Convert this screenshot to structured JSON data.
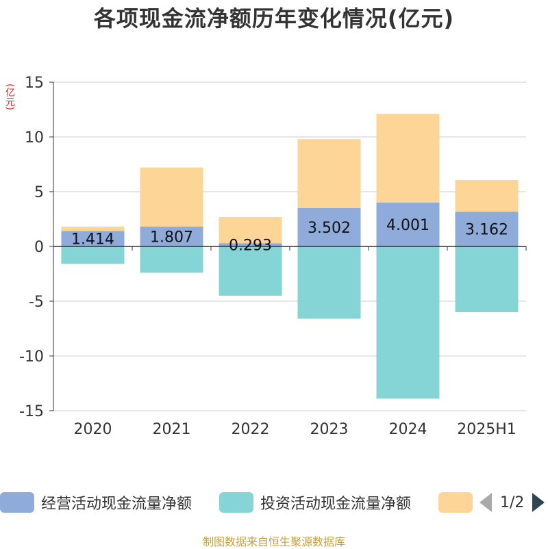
{
  "title": "各项现金流净额历年变化情况(亿元)",
  "unit_label": "(亿元)",
  "source": "制图数据来自恒生聚源数据库",
  "legend": {
    "items": [
      {
        "label": "经营活动现金流量净额",
        "color": "#8eabd9"
      },
      {
        "label": "投资活动现金流量净额",
        "color": "#85d4d6"
      },
      {
        "label": "",
        "color": "#fdd697"
      }
    ],
    "page_indicator": "1/2"
  },
  "chart_data": {
    "type": "bar",
    "stacked": true,
    "categories": [
      "2020",
      "2021",
      "2022",
      "2023",
      "2024",
      "2025H1"
    ],
    "ylim": [
      -15,
      15
    ],
    "yticks": [
      -15,
      -10,
      -5,
      0,
      5,
      10,
      15
    ],
    "grid": true,
    "legend_position": "bottom",
    "series": [
      {
        "name": "经营活动现金流量净额",
        "color": "#8eabd9",
        "values": [
          1.414,
          1.807,
          0.293,
          3.502,
          4.001,
          3.162
        ],
        "labels": [
          "1.414",
          "1.807",
          "0.293",
          "3.502",
          "4.001",
          "3.162"
        ]
      },
      {
        "name": "投资活动现金流量净额",
        "color": "#85d4d6",
        "values": [
          -1.6,
          -2.4,
          -4.5,
          -6.6,
          -13.9,
          -6.0
        ]
      },
      {
        "name": "",
        "color": "#fdd697",
        "values": [
          0.4,
          5.4,
          2.4,
          6.3,
          8.1,
          2.9
        ]
      }
    ]
  }
}
